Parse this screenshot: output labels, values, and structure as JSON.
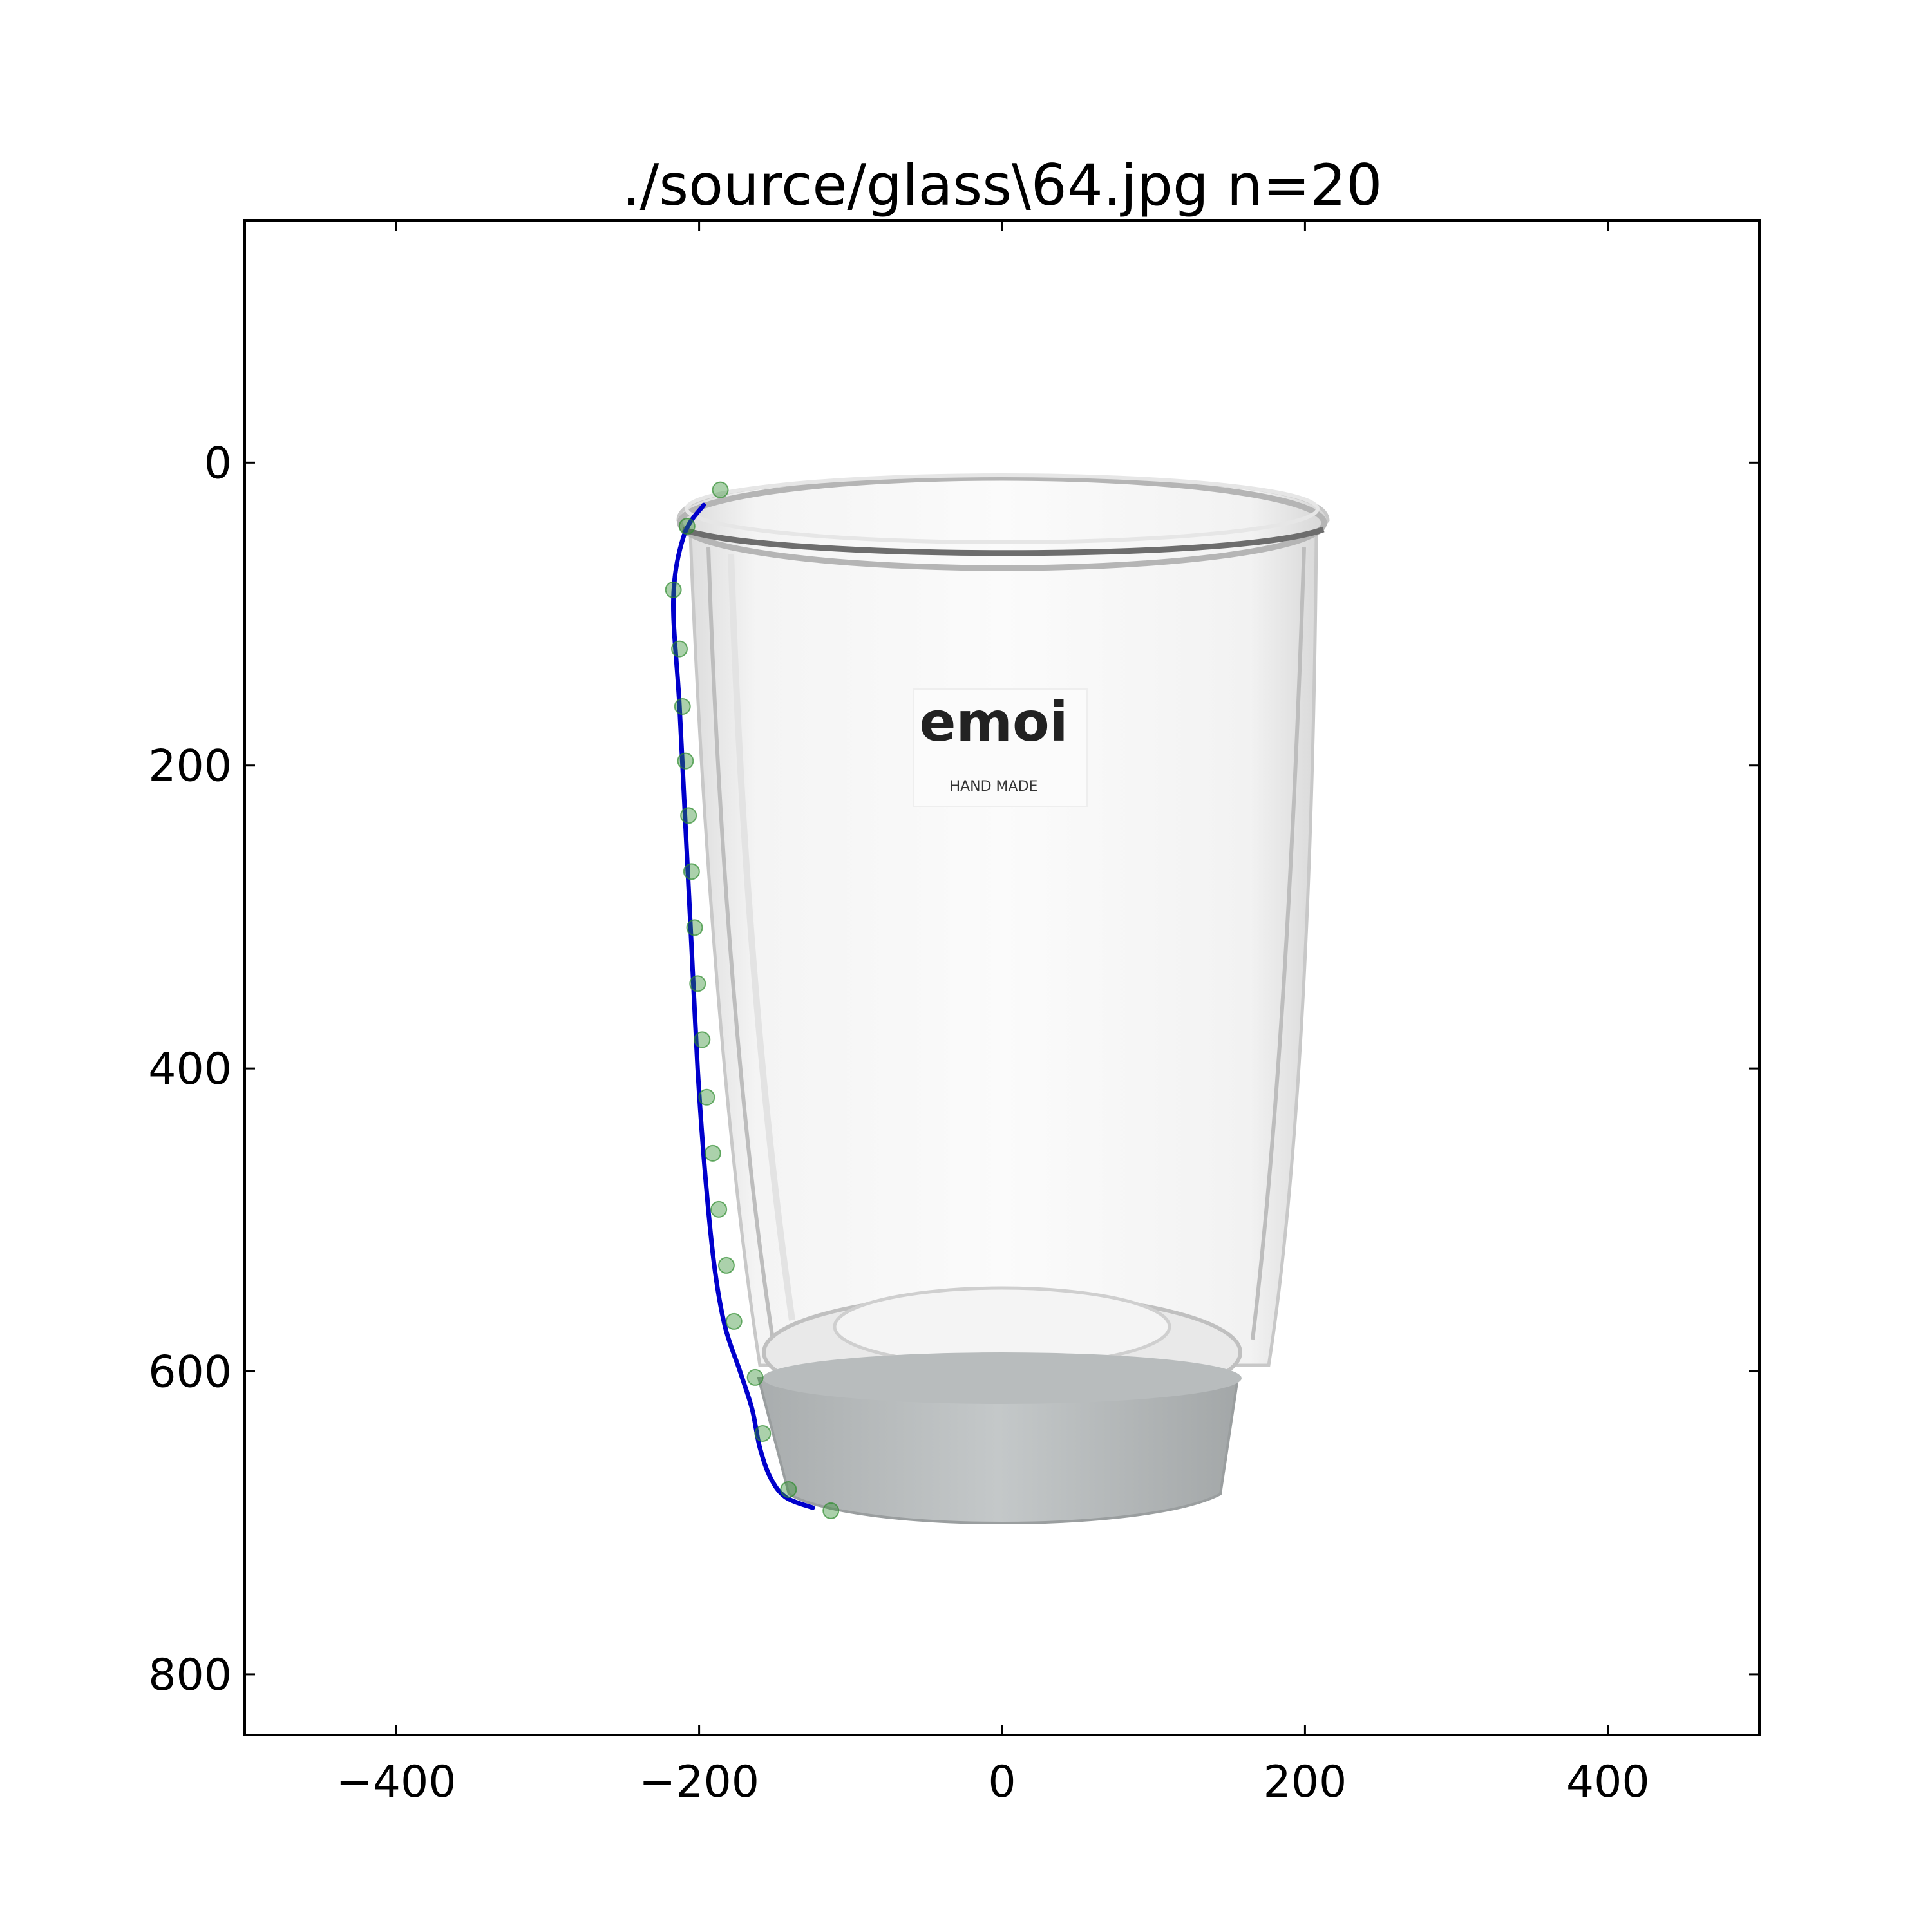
{
  "chart_data": {
    "type": "scatter",
    "title": "./source/glass\\64.jpg n=20",
    "xlabel": "",
    "ylabel": "",
    "xlim": [
      -500,
      500
    ],
    "ylim": [
      840,
      -160
    ],
    "y_inverted": true,
    "grid": false,
    "x_ticks": [
      -400,
      -200,
      0,
      200,
      400
    ],
    "x_tick_labels": [
      "−400",
      "−200",
      "0",
      "200",
      "400"
    ],
    "y_ticks": [
      0,
      200,
      400,
      600,
      800
    ],
    "y_tick_labels": [
      "0",
      "200",
      "400",
      "600",
      "800"
    ],
    "background_image": {
      "description_free": true,
      "logo_text": "emoi",
      "logo_subtext": "HAND MADE"
    },
    "series": [
      {
        "kind": "points",
        "color": "#2e8b2e",
        "x": [
          -186,
          -208,
          -217,
          -213,
          -211,
          -209,
          -207,
          -205,
          -203,
          -201,
          -198,
          -195,
          -191,
          -187,
          -182,
          -177,
          -163,
          -158,
          -141,
          -113
        ],
        "y": [
          18,
          42,
          84,
          123,
          161,
          197,
          233,
          270,
          307,
          344,
          381,
          419,
          456,
          493,
          530,
          567,
          604,
          641,
          678,
          692
        ]
      },
      {
        "kind": "curve",
        "color": "#0000cc",
        "x": [
          -197,
          -210,
          -217,
          -213,
          -209,
          -205,
          -201,
          -196,
          -190,
          -183,
          -173,
          -165,
          -160,
          -153,
          -143,
          -125
        ],
        "y": [
          28,
          48,
          90,
          160,
          240,
          320,
          400,
          470,
          530,
          570,
          600,
          625,
          650,
          670,
          683,
          690
        ]
      }
    ]
  }
}
